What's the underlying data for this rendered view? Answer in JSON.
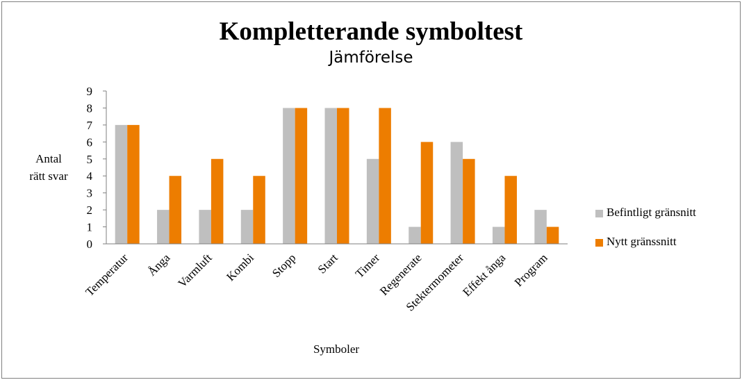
{
  "chart_data": {
    "type": "bar",
    "title": "Kompletterande symboltest",
    "subtitle": "Jämförelse",
    "ylabel_lines": [
      "Antal",
      "rätt svar"
    ],
    "xlabel": "Symboler",
    "ylim": [
      0,
      9
    ],
    "yticks": [
      0,
      1,
      2,
      3,
      4,
      5,
      6,
      7,
      8,
      9
    ],
    "categories": [
      "Temperatur",
      "Ånga",
      "Varmluft",
      "Kombi",
      "Stopp",
      "Start",
      "Timer",
      "Regenerate",
      "Stektermometer",
      "Effekt ånga",
      "Program"
    ],
    "series": [
      {
        "name": "Befintligt gränsnitt",
        "color": "#bfbfbf",
        "values": [
          7,
          2,
          2,
          2,
          8,
          8,
          5,
          1,
          6,
          1,
          2
        ]
      },
      {
        "name": "Nytt gränssnitt",
        "color": "#ed7d00",
        "values": [
          7,
          4,
          5,
          4,
          8,
          8,
          8,
          6,
          5,
          4,
          1
        ]
      }
    ],
    "legend_position": "right",
    "grid": false
  }
}
